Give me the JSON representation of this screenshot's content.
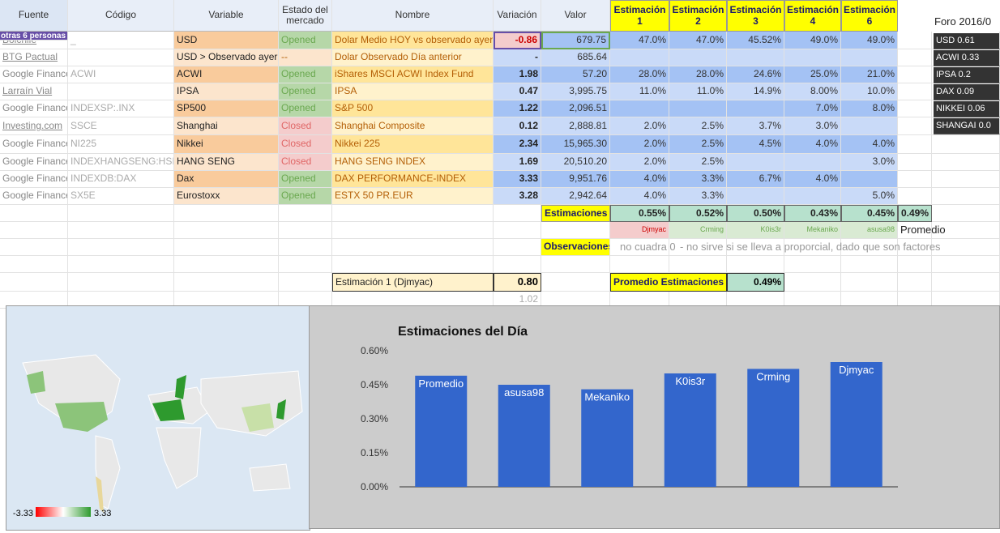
{
  "header_row": [
    "Fuente",
    "Código",
    "Variable",
    "Estado del mercado",
    "Nombre",
    "Variación",
    "Valor",
    "Estimación 1",
    "Estimación 2",
    "Estimación 3",
    "Estimación 4",
    "Estimación 6"
  ],
  "tag": "otras 6 personas",
  "rows": [
    [
      "Bolchile",
      "_",
      "USD",
      "Opened",
      "Dolar Medio HOY vs observado ayer",
      "-0.86",
      "679.75",
      "47.0%",
      "47.0%",
      "45.52%",
      "49.0%",
      "49.0%"
    ],
    [
      "BTG Pactual",
      null,
      "USD > Observado ayer",
      "--",
      "Dolar Observado Día anterior",
      "-",
      "685.64",
      null,
      null,
      null,
      null,
      null
    ],
    [
      "Google Finance",
      "ACWI",
      "ACWI",
      "Opened",
      "iShares MSCI ACWI Index Fund",
      "1.98",
      "57.20",
      "28.0%",
      "28.0%",
      "24.6%",
      "25.0%",
      "21.0%"
    ],
    [
      "Larraín Vial",
      null,
      "IPSA",
      "Opened",
      "IPSA",
      "0.47",
      "3,995.75",
      "11.0%",
      "11.0%",
      "14.9%",
      "8.00%",
      "10.0%"
    ],
    [
      "Google Finance",
      "INDEXSP:.INX",
      "SP500",
      "Opened",
      "S&P 500",
      "1.22",
      "2,096.51",
      null,
      null,
      null,
      "7.0%",
      "8.0%"
    ],
    [
      "Investing.com",
      "SSCE",
      "Shanghai",
      "Closed",
      "Shanghai Composite",
      "0.12",
      "2,888.81",
      "2.0%",
      "2.5%",
      "3.7%",
      "3.0%",
      null
    ],
    [
      "Google Finance",
      "NI225",
      "Nikkei",
      "Closed",
      "Nikkei 225",
      "2.34",
      "15,965.30",
      "2.0%",
      "2.5%",
      "4.5%",
      "4.0%",
      "4.0%"
    ],
    [
      "Google Finance",
      "INDEXHANGSENG:HSI",
      "HANG SENG",
      "Closed",
      "HANG SENG INDEX",
      "1.69",
      "20,510.20",
      "2.0%",
      "2.5%",
      null,
      null,
      "3.0%"
    ],
    [
      "Google Finance",
      "INDEXDB:DAX",
      "Dax",
      "Opened",
      "DAX PERFORMANCE-INDEX",
      "3.33",
      "9,951.76",
      "4.0%",
      "3.3%",
      "6.7%",
      "4.0%",
      null
    ],
    [
      "Google Finance",
      "SX5E",
      "Eurostoxx",
      "Opened",
      "ESTX 50 PR.EUR",
      "3.28",
      "2,942.64",
      "4.0%",
      "3.3%",
      null,
      null,
      "5.0%"
    ]
  ],
  "summary": {
    "label": "Estimaciones",
    "values": [
      "0.55%",
      "0.52%",
      "0.50%",
      "0.43%",
      "0.45%",
      "0.49%"
    ],
    "names": [
      "Djmyac",
      "Crming",
      "K0is3r",
      "Mekaniko",
      "asusa98",
      "Promedio"
    ],
    "observaciones_label": "Observaciones",
    "notes": [
      "no cuadra 0",
      "- no sirve si se lleva a proporcial, dado que son factores"
    ]
  },
  "estimacion1": {
    "label": "Estimación 1 (Djmyac)",
    "value": "0.80",
    "below": "1.02"
  },
  "promedio_estimaciones": {
    "label": "Promedio Estimaciones",
    "value": "0.49%"
  },
  "side_panel": {
    "title": "Foro 2016/0",
    "items": [
      "USD 0.61",
      "ACWI 0.33",
      "IPSA 0.2",
      "DAX 0.09",
      "NIKKEI 0.06",
      "SHANGAI 0.0"
    ]
  },
  "map_legend": {
    "min": "-3.33",
    "max": "3.33"
  },
  "chart_data": {
    "type": "bar",
    "title": "Estimaciones del Día",
    "categories": [
      "Promedio",
      "asusa98",
      "Mekaniko",
      "K0is3r",
      "Crming",
      "Djmyac"
    ],
    "values": [
      0.49,
      0.45,
      0.43,
      0.5,
      0.52,
      0.55
    ],
    "color": "#3366cc",
    "ylim": [
      0,
      0.6
    ],
    "yticks": [
      {
        "value": 0,
        "label": "0.00%"
      },
      {
        "value": 0.15,
        "label": "0.15%"
      },
      {
        "value": 0.3,
        "label": "0.30%"
      },
      {
        "value": 0.45,
        "label": "0.45%"
      },
      {
        "value": 0.6,
        "label": "0.60%"
      }
    ]
  }
}
